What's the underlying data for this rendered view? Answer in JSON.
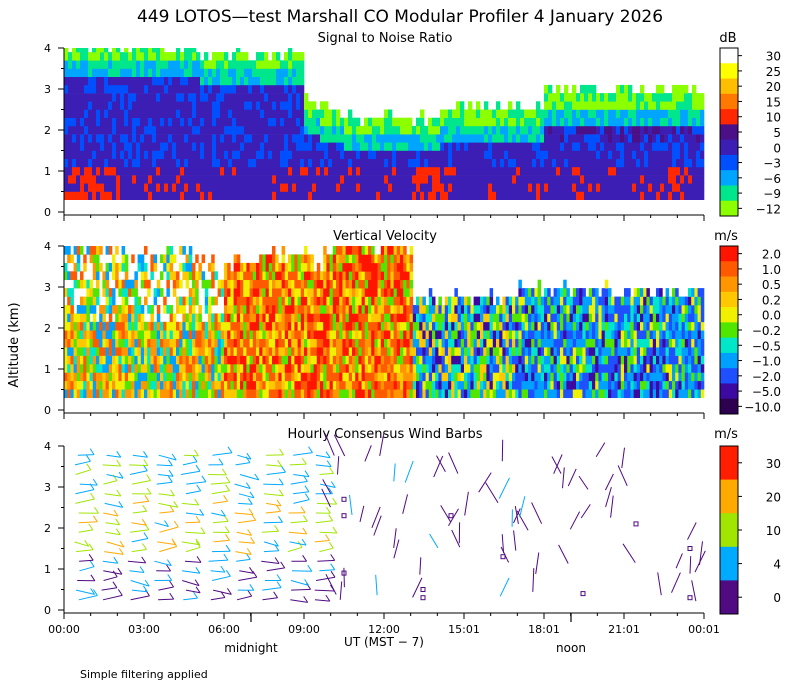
{
  "figure": {
    "title": "449 LOTOS—test Marshall CO Modular Profiler  4 January 2026",
    "ylabel": "Altitude (km)",
    "xlabel": "UT  (MST − 7)",
    "footnote": "Simple filtering applied",
    "local_markers": [
      "midnight",
      "noon"
    ]
  },
  "chart_data": [
    {
      "type": "heatmap",
      "title": "Signal to Noise Ratio",
      "unit": "dB",
      "ylim": [
        0,
        4
      ],
      "yticks": [
        "0",
        "1",
        "2",
        "3",
        "4"
      ],
      "xticks": [
        "00:00",
        "03:00",
        "06:00",
        "09:00",
        "12:00",
        "15:01",
        "18:01",
        "21:01",
        "00:01"
      ],
      "colorbar": [
        {
          "label": "30",
          "color": "#ffffff"
        },
        {
          "label": "25",
          "color": "#ffff00"
        },
        {
          "label": "20",
          "color": "#ffbe00"
        },
        {
          "label": "15",
          "color": "#ff7800"
        },
        {
          "label": "10",
          "color": "#ff2800"
        },
        {
          "label": "5",
          "color": "#4b0f87"
        },
        {
          "label": "0",
          "color": "#3c1eb4"
        },
        {
          "label": "−3",
          "color": "#0050ff"
        },
        {
          "label": "−6",
          "color": "#00a5ff"
        },
        {
          "label": "−9",
          "color": "#00e68c"
        },
        {
          "label": "−12",
          "color": "#8cff00"
        }
      ]
    },
    {
      "type": "heatmap",
      "title": "Vertical Velocity",
      "unit": "m/s",
      "ylim": [
        0,
        4
      ],
      "yticks": [
        "0",
        "1",
        "2",
        "3",
        "4"
      ],
      "xticks": [
        "00:00",
        "03:00",
        "06:00",
        "09:00",
        "12:00",
        "15:01",
        "18:01",
        "21:01",
        "00:01"
      ],
      "colorbar": [
        {
          "label": "2.0",
          "color": "#ff1400"
        },
        {
          "label": "1.0",
          "color": "#ff5a00"
        },
        {
          "label": "0.5",
          "color": "#ff9600"
        },
        {
          "label": "0.2",
          "color": "#ffc800"
        },
        {
          "label": "0.0",
          "color": "#f0f000"
        },
        {
          "label": "−0.2",
          "color": "#50e600"
        },
        {
          "label": "−0.5",
          "color": "#00e6c8"
        },
        {
          "label": "−1.0",
          "color": "#00a0ff"
        },
        {
          "label": "−2.0",
          "color": "#1e50ff"
        },
        {
          "label": "−5.0",
          "color": "#3c0aa0"
        },
        {
          "label": "−10.0",
          "color": "#2d0050"
        }
      ]
    },
    {
      "type": "barbs",
      "title": "Hourly Consensus Wind Barbs",
      "unit": "m/s",
      "ylim": [
        0,
        4
      ],
      "yticks": [
        "0",
        "1",
        "2",
        "3",
        "4"
      ],
      "xticks": [
        "00:00",
        "03:00",
        "06:00",
        "09:00",
        "12:00",
        "15:01",
        "18:01",
        "21:01",
        "00:01"
      ],
      "colorbar": [
        {
          "label": "30",
          "color": "#ff1e00"
        },
        {
          "label": "20",
          "color": "#ffaa00"
        },
        {
          "label": "10",
          "color": "#a0e600"
        },
        {
          "label": "4",
          "color": "#00aaff"
        },
        {
          "label": "0",
          "color": "#500a82"
        }
      ]
    }
  ]
}
